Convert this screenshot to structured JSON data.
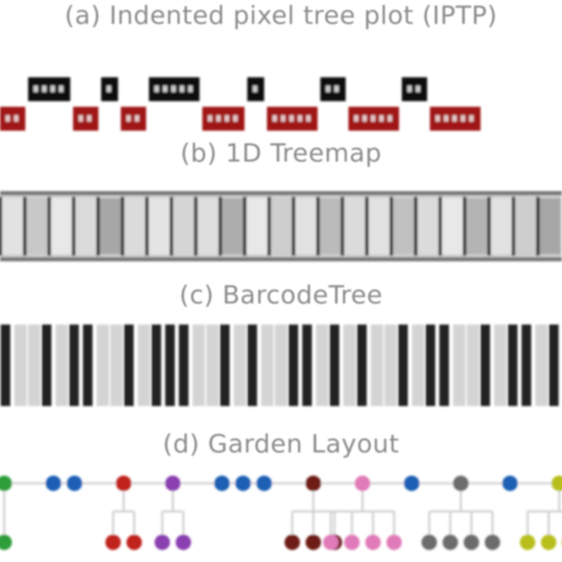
{
  "titles": {
    "a": "(a) Indented pixel tree plot (IPTP)",
    "b": "(b) 1D Treemap",
    "c": "(c) BarcodeTree",
    "d": "(d) Garden Layout"
  },
  "colors": {
    "title_text": "#8c8c8c",
    "node_dark": "#111111",
    "node_red": "#a01616",
    "treemap_frame": "#888888",
    "barcode_dark": "#222222",
    "barcode_light": "#d4d4d4",
    "edge": "#d0d0d0"
  },
  "iptp": {
    "level1": [
      4,
      1,
      5,
      1,
      2,
      2
    ],
    "level2": [
      2,
      2,
      2,
      4,
      5,
      5,
      5
    ]
  },
  "treemap": {
    "cells": [
      0.15,
      0.35,
      0.1,
      0.2,
      0.6,
      0.2,
      0.12,
      0.25,
      0.18,
      0.55,
      0.1,
      0.3,
      0.15,
      0.45,
      0.2,
      0.15,
      0.4,
      0.2,
      0.1,
      0.5,
      0.15,
      0.3,
      0.6
    ]
  },
  "barcode": {
    "bars": [
      "d",
      "l",
      "l",
      "d",
      "l",
      "d",
      "d",
      "l",
      "l",
      "d",
      "l",
      "d",
      "d",
      "d",
      "l",
      "l",
      "d",
      "l",
      "d",
      "l",
      "l",
      "d",
      "d",
      "l",
      "d",
      "l",
      "d",
      "l",
      "l",
      "d",
      "l",
      "d",
      "d",
      "l",
      "l",
      "d",
      "l",
      "d",
      "d",
      "l",
      "d"
    ]
  },
  "garden": {
    "groups": [
      {
        "color": "#2e9e3a",
        "parents": 1,
        "children": 1
      },
      {
        "color": "#1f5fb4",
        "parents": 2,
        "children": 0
      },
      {
        "color": "#c0201e",
        "parents": 1,
        "children": 2
      },
      {
        "color": "#8a3fb0",
        "parents": 1,
        "children": 2
      },
      {
        "color": "#1f5fb4",
        "parents": 3,
        "children": 0
      },
      {
        "color": "#6e1a14",
        "parents": 1,
        "children": 3
      },
      {
        "color": "#e07ab8",
        "parents": 1,
        "children": 4
      },
      {
        "color": "#1f5fb4",
        "parents": 1,
        "children": 0
      },
      {
        "color": "#6c6c6c",
        "parents": 1,
        "children": 4
      },
      {
        "color": "#1f5fb4",
        "parents": 1,
        "children": 0
      },
      {
        "color": "#b8bf1f",
        "parents": 1,
        "children": 4
      }
    ]
  }
}
